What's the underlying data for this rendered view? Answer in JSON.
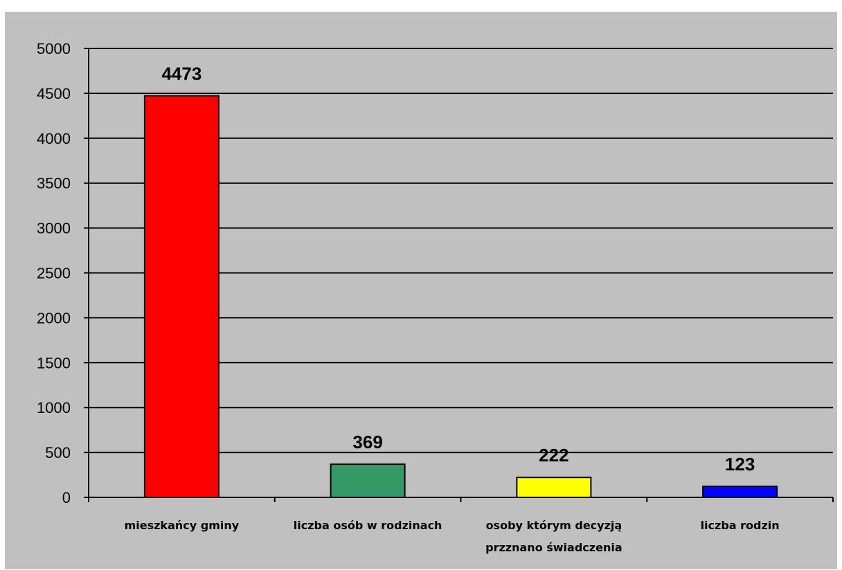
{
  "chart_data": {
    "type": "bar",
    "title": "",
    "xlabel": "",
    "ylabel": "",
    "ylim": [
      0,
      5000
    ],
    "yticks": [
      0,
      500,
      1000,
      1500,
      2000,
      2500,
      3000,
      3500,
      4000,
      4500,
      5000
    ],
    "grid": true,
    "legend": "none",
    "categories": [
      [
        "mieszkańcy gminy"
      ],
      [
        "liczba osób w rodzinach"
      ],
      [
        "osoby którym decyzją",
        "przznano świadczenia"
      ],
      [
        "liczba rodzin"
      ]
    ],
    "values": [
      4473,
      369,
      222,
      123
    ],
    "colors": [
      "#ff0000",
      "#339966",
      "#ffff00",
      "#0000ff"
    ],
    "background": "#c0c0c0"
  }
}
